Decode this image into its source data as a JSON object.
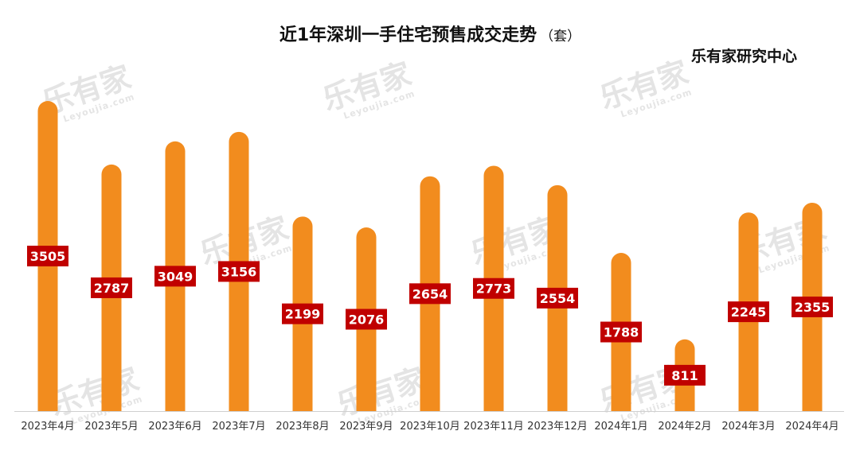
{
  "watermark": {
    "brand": "乐有家",
    "domain": "Leyoujia.com"
  },
  "chart_data": {
    "type": "bar",
    "title": "近1年深圳一手住宅预售成交走势",
    "unit": "（套）",
    "source": "乐有家研究中心",
    "categories": [
      "2023年4月",
      "2023年5月",
      "2023年6月",
      "2023年7月",
      "2023年8月",
      "2023年9月",
      "2023年10月",
      "2023年11月",
      "2023年12月",
      "2024年1月",
      "2024年2月",
      "2024年3月",
      "2024年4月"
    ],
    "values": [
      3505,
      2787,
      3049,
      3156,
      2199,
      2076,
      2654,
      2773,
      2554,
      1788,
      811,
      2245,
      2355
    ],
    "bar_color": "#F28C1E",
    "label_bg_color": "#C00000",
    "label_text_color": "#FFFFFF",
    "ylim": [
      0,
      3505
    ],
    "grid": false,
    "legend": "none"
  }
}
